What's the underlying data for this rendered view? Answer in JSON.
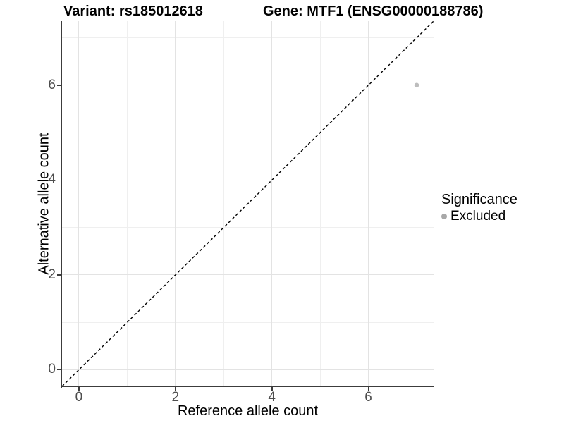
{
  "figure": {
    "title_left": "Variant: rs185012618",
    "title_right": "Gene: MTF1 (ENSG00000188786)"
  },
  "axes": {
    "x": {
      "label": "Reference allele count",
      "tick_labels": [
        "0",
        "2",
        "4",
        "6"
      ]
    },
    "y": {
      "label": "Alternative allele count",
      "tick_labels": [
        "0",
        "2",
        "4",
        "6"
      ]
    }
  },
  "legend": {
    "title": "Significance",
    "items": [
      {
        "label": "Excluded",
        "color": "#a8a8a8"
      }
    ]
  },
  "chart_data": {
    "type": "scatter",
    "title": "Variant: rs185012618 | Gene: MTF1 (ENSG00000188786)",
    "xlabel": "Reference allele count",
    "ylabel": "Alternative allele count",
    "xlim": [
      -0.35,
      7.35
    ],
    "ylim": [
      -0.35,
      7.35
    ],
    "x_ticks": [
      0,
      2,
      4,
      6
    ],
    "y_ticks": [
      0,
      2,
      4,
      6
    ],
    "grid": {
      "x_major": [
        0,
        2,
        4,
        6
      ],
      "x_minor": [
        1,
        3,
        5,
        7
      ],
      "y_major": [
        0,
        2,
        4,
        6
      ],
      "y_minor": [
        1,
        3,
        5,
        7
      ]
    },
    "series": [
      {
        "name": "Excluded",
        "color": "#bdbdbd",
        "points": [
          {
            "x": 7,
            "y": 6
          }
        ]
      }
    ],
    "reference_line": {
      "kind": "identity",
      "equation": "y = x",
      "style": "dashed",
      "color": "#000000"
    },
    "legend_position": "right",
    "grid_on": true
  }
}
